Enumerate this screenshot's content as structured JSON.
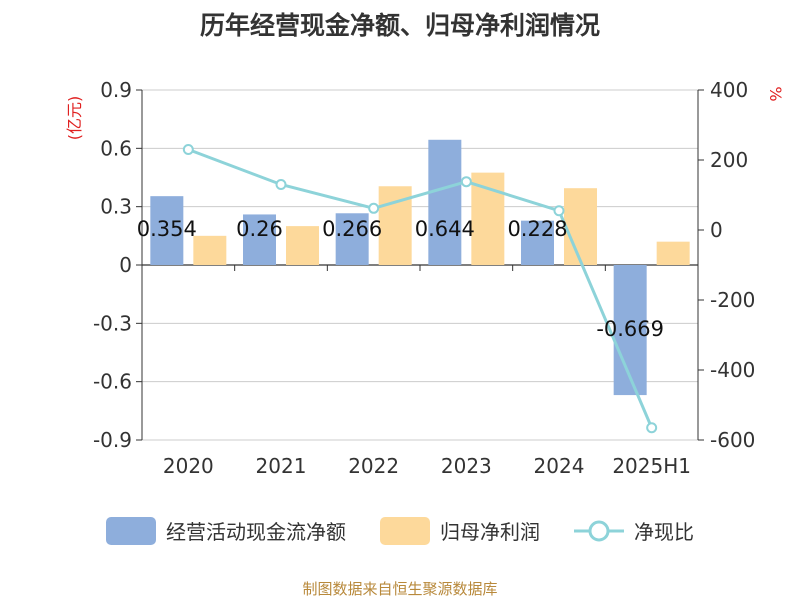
{
  "chart_data": {
    "type": "bar",
    "title": "历年经营现金净额、归母净利润情况",
    "categories": [
      "2020",
      "2021",
      "2022",
      "2023",
      "2024",
      "2025H1"
    ],
    "ylabel_left": "(亿元)",
    "ylabel_right": "%",
    "ylim_left": [
      -0.9,
      0.9
    ],
    "yticks_left": [
      "0.9",
      "0.6",
      "0.3",
      "0",
      "-0.3",
      "-0.6",
      "-0.9"
    ],
    "ylim_right": [
      -600,
      400
    ],
    "yticks_right": [
      "400",
      "200",
      "0",
      "-200",
      "-400",
      "-600"
    ],
    "series": [
      {
        "name": "经营活动现金流净额",
        "kind": "bar",
        "axis": "left",
        "color": "#8eaedc",
        "values": [
          0.354,
          0.26,
          0.266,
          0.644,
          0.228,
          -0.669
        ],
        "labels": [
          "0.354",
          "0.26",
          "0.266",
          "0.644",
          "0.228",
          "-0.669"
        ]
      },
      {
        "name": "归母净利润",
        "kind": "bar",
        "axis": "left",
        "color": "#fdd99b",
        "values": [
          0.15,
          0.2,
          0.405,
          0.475,
          0.395,
          0.12
        ]
      },
      {
        "name": "净现比",
        "kind": "line",
        "axis": "right",
        "color": "#8dd3d9",
        "values": [
          230,
          130,
          62,
          138,
          55,
          -565
        ]
      }
    ],
    "grid": true,
    "legend": "bottom"
  },
  "source": "制图数据来自恒生聚源数据库"
}
